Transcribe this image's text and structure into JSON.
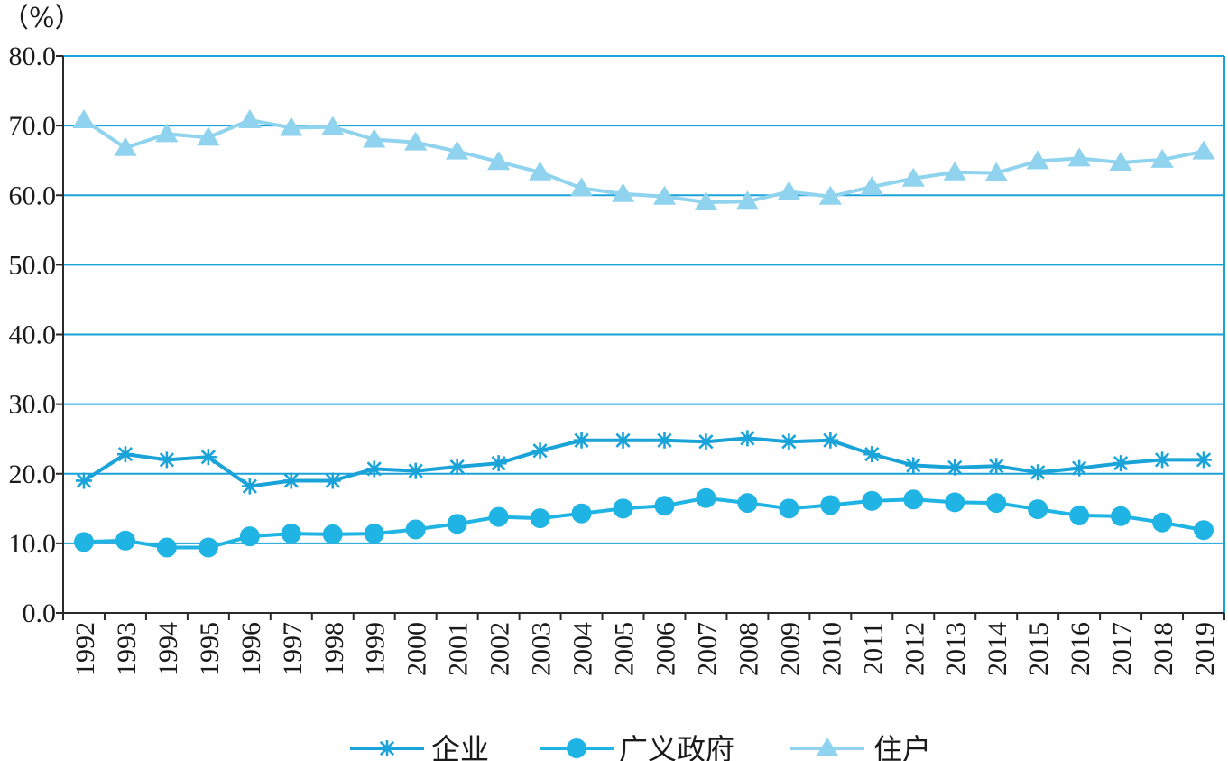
{
  "chart_data": {
    "type": "line",
    "unit_label": "（%）",
    "ylim": [
      0,
      80
    ],
    "y_ticks": [
      "0.0",
      "10.0",
      "20.0",
      "30.0",
      "40.0",
      "50.0",
      "60.0",
      "70.0",
      "80.0"
    ],
    "grid": true,
    "legend_position": "bottom",
    "x": [
      "1992",
      "1993",
      "1994",
      "1995",
      "1996",
      "1997",
      "1998",
      "1999",
      "2000",
      "2001",
      "2002",
      "2003",
      "2004",
      "2005",
      "2006",
      "2007",
      "2008",
      "2009",
      "2010",
      "2011",
      "2012",
      "2013",
      "2014",
      "2015",
      "2016",
      "2017",
      "2018",
      "2019"
    ],
    "series": [
      {
        "name": "企业",
        "marker": "asterisk",
        "color": "#1aa3d9",
        "values": [
          19.0,
          22.8,
          22.0,
          22.4,
          18.2,
          19.0,
          19.0,
          20.7,
          20.4,
          21.0,
          21.5,
          23.3,
          24.8,
          24.8,
          24.8,
          24.6,
          25.1,
          24.6,
          24.8,
          22.8,
          21.2,
          20.9,
          21.1,
          20.2,
          20.8,
          21.5,
          22.0,
          22.0
        ]
      },
      {
        "name": "广义政府",
        "marker": "circle",
        "color": "#1fb4e3",
        "values": [
          10.2,
          10.4,
          9.4,
          9.4,
          11.0,
          11.4,
          11.3,
          11.4,
          12.0,
          12.8,
          13.8,
          13.6,
          14.3,
          15.0,
          15.4,
          16.5,
          15.8,
          15.0,
          15.5,
          16.1,
          16.3,
          15.9,
          15.8,
          14.9,
          14.0,
          13.9,
          13.0,
          11.9
        ]
      },
      {
        "name": "住户",
        "marker": "triangle",
        "color": "#8fd3ee",
        "values": [
          70.8,
          66.8,
          68.8,
          68.3,
          70.8,
          69.7,
          69.8,
          68.0,
          67.6,
          66.3,
          64.8,
          63.3,
          61.0,
          60.2,
          59.8,
          59.0,
          59.1,
          60.5,
          59.8,
          61.2,
          62.4,
          63.3,
          63.2,
          64.9,
          65.3,
          64.7,
          65.1,
          66.3
        ]
      }
    ]
  },
  "colors": {
    "axis": "#2a2a2a",
    "grid": "#1aa3d9"
  }
}
